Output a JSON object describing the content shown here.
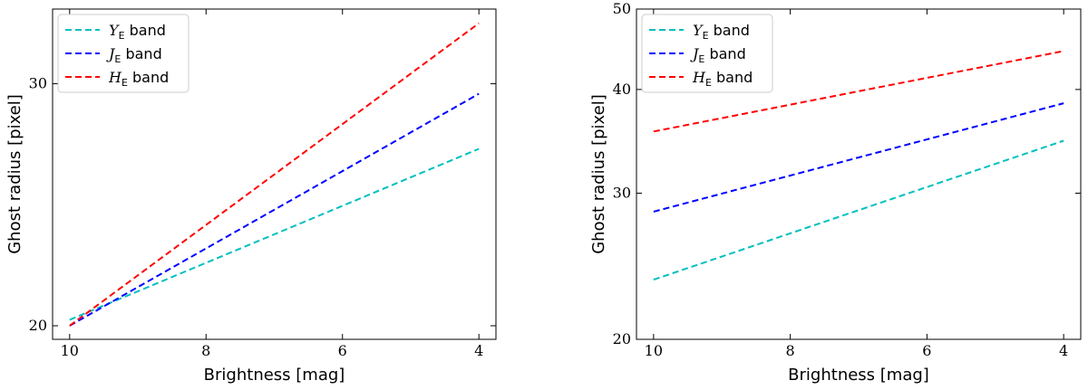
{
  "chart_data": [
    {
      "type": "line",
      "xlabel": "Brightness [mag]",
      "ylabel": "Ghost radius [pixel]",
      "xlim": [
        10.25,
        3.75
      ],
      "xticks": [
        10,
        8,
        6,
        4
      ],
      "ylim": [
        19.55,
        34
      ],
      "yticks": [
        20,
        30
      ],
      "yscale": "log",
      "legend": "upper left",
      "x": [
        10,
        4
      ],
      "series": [
        {
          "name": "YE band",
          "color": "#00bfbf",
          "values": [
            20.2,
            26.9
          ]
        },
        {
          "name": "JE band",
          "color": "#0000ff",
          "values": [
            20.0,
            29.5
          ]
        },
        {
          "name": "HE band",
          "color": "#ff0000",
          "values": [
            20.0,
            33.2
          ]
        }
      ]
    },
    {
      "type": "line",
      "xlabel": "Brightness [mag]",
      "ylabel": "Ghost radius [pixel]",
      "xlim": [
        10.25,
        3.75
      ],
      "xticks": [
        10,
        8,
        6,
        4
      ],
      "ylim": [
        20,
        50
      ],
      "yticks": [
        20,
        30,
        40,
        50
      ],
      "yscale": "log",
      "legend": "upper left",
      "x": [
        10,
        4
      ],
      "series": [
        {
          "name": "YE band",
          "color": "#00bfbf",
          "values": [
            23.6,
            34.7
          ]
        },
        {
          "name": "JE band",
          "color": "#0000ff",
          "values": [
            28.5,
            38.5
          ]
        },
        {
          "name": "HE band",
          "color": "#ff0000",
          "values": [
            35.6,
            44.5
          ]
        }
      ]
    }
  ]
}
